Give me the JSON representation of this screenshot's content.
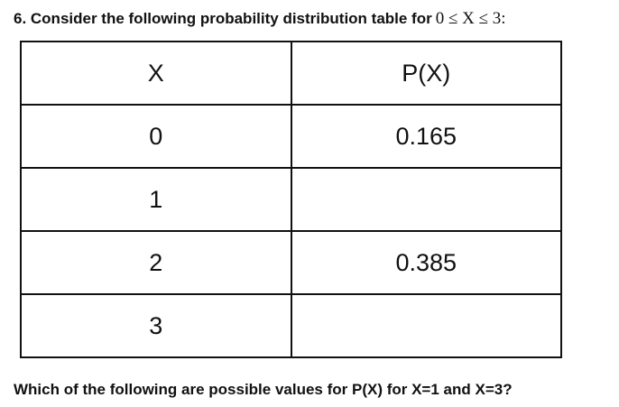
{
  "question": {
    "title": "6. Consider the following probability distribution table for",
    "title_math": "0 ≤ X ≤ 3:",
    "table": {
      "header": [
        "X",
        "P(X)"
      ],
      "rows": [
        {
          "x": "0",
          "p": "0.165"
        },
        {
          "x": "1"
        },
        {
          "x": "2",
          "p": "0.385"
        },
        {
          "x": "3"
        }
      ]
    },
    "prompt": "Which of the following are possible values for P(X) for X=1 and X=3?"
  }
}
